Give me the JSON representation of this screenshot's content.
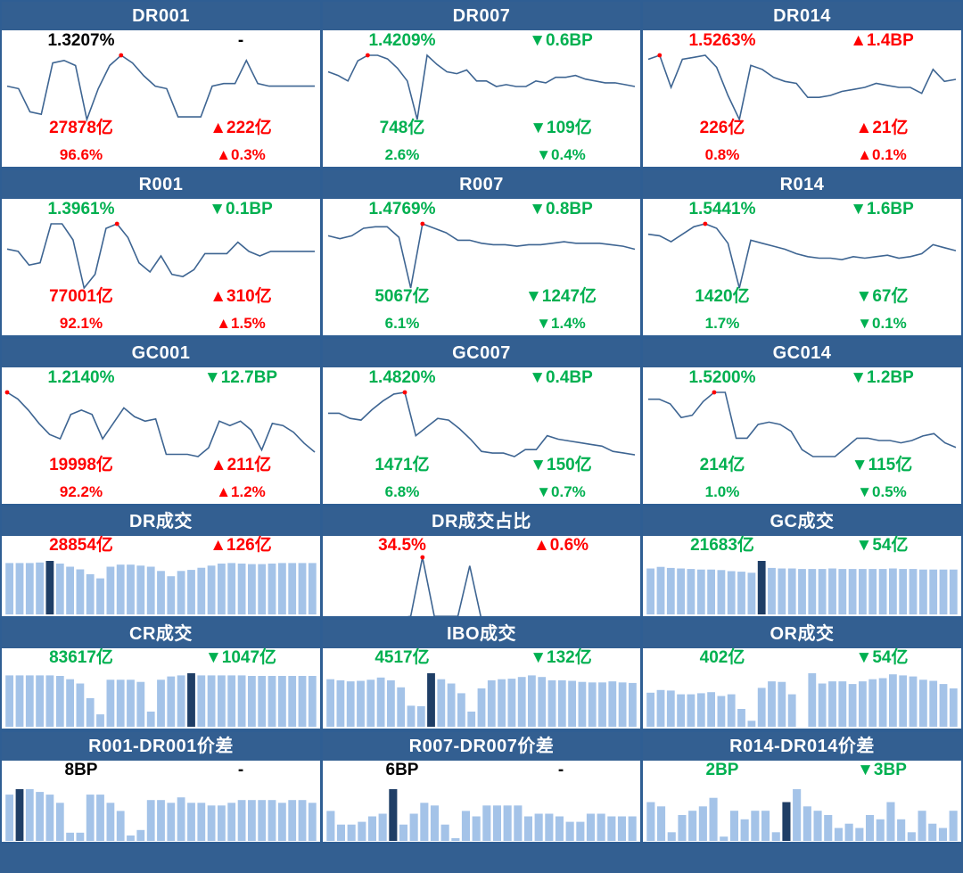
{
  "colors": {
    "header_bg": "#335f91",
    "up": "#ff0000",
    "down": "#00b050",
    "neutral": "#000000",
    "line": "#3e6592",
    "bar": "#a4c3e8",
    "bar_highlight": "#1f3e66"
  },
  "panels": [
    {
      "id": "dr001",
      "title": "DR001",
      "type": "line",
      "rate": "1.3207%",
      "rate_color": "black",
      "rate_change": "-",
      "rate_change_color": "black",
      "volume": "27878亿",
      "volume_color": "red",
      "volume_change": "▲222亿",
      "volume_change_color": "red",
      "share": "96.6%",
      "share_color": "red",
      "share_change": "▲0.3%",
      "share_change_color": "red",
      "chart_data": {
        "type": "line",
        "values": [
          1.25,
          1.24,
          1.15,
          1.14,
          1.34,
          1.35,
          1.33,
          1.12,
          1.24,
          1.33,
          1.37,
          1.34,
          1.29,
          1.25,
          1.24,
          1.13,
          1.13,
          1.13,
          1.25,
          1.26,
          1.26,
          1.35,
          1.26,
          1.25,
          1.25,
          1.25,
          1.25,
          1.25
        ],
        "highlight_index": 10
      }
    },
    {
      "id": "dr007",
      "title": "DR007",
      "type": "line",
      "rate": "1.4209%",
      "rate_color": "green",
      "rate_change": "▼0.6BP",
      "rate_change_color": "green",
      "volume": "748亿",
      "volume_color": "green",
      "volume_change": "▼109亿",
      "volume_change_color": "green",
      "share": "2.6%",
      "share_color": "green",
      "share_change": "▼0.4%",
      "share_change_color": "green",
      "chart_data": {
        "type": "line",
        "values": [
          1.6,
          1.58,
          1.55,
          1.66,
          1.69,
          1.69,
          1.67,
          1.62,
          1.55,
          1.34,
          1.69,
          1.64,
          1.6,
          1.59,
          1.61,
          1.55,
          1.55,
          1.52,
          1.53,
          1.52,
          1.52,
          1.55,
          1.54,
          1.57,
          1.57,
          1.58,
          1.56,
          1.55,
          1.54,
          1.54,
          1.53,
          1.52
        ],
        "highlight_index": 4
      }
    },
    {
      "id": "dr014",
      "title": "DR014",
      "type": "line",
      "rate": "1.5263%",
      "rate_color": "red",
      "rate_change": "▲1.4BP",
      "rate_change_color": "red",
      "volume": "226亿",
      "volume_color": "red",
      "volume_change": "▲21亿",
      "volume_change_color": "red",
      "share": "0.8%",
      "share_color": "red",
      "share_change": "▲0.1%",
      "share_change_color": "red",
      "chart_data": {
        "type": "line",
        "values": [
          1.78,
          1.8,
          1.64,
          1.78,
          1.79,
          1.8,
          1.74,
          1.6,
          1.48,
          1.75,
          1.73,
          1.69,
          1.67,
          1.66,
          1.59,
          1.59,
          1.6,
          1.62,
          1.63,
          1.64,
          1.66,
          1.65,
          1.64,
          1.64,
          1.61,
          1.73,
          1.67,
          1.68
        ],
        "highlight_index": 1
      }
    },
    {
      "id": "r001",
      "title": "R001",
      "type": "line",
      "rate": "1.3961%",
      "rate_color": "green",
      "rate_change": "▼0.1BP",
      "rate_change_color": "green",
      "volume": "77001亿",
      "volume_color": "red",
      "volume_change": "▲310亿",
      "volume_change_color": "red",
      "share": "92.1%",
      "share_color": "red",
      "share_change": "▲1.5%",
      "share_change_color": "red",
      "chart_data": {
        "type": "line",
        "values": [
          1.3,
          1.29,
          1.23,
          1.24,
          1.41,
          1.41,
          1.34,
          1.13,
          1.19,
          1.39,
          1.41,
          1.35,
          1.24,
          1.2,
          1.27,
          1.19,
          1.18,
          1.21,
          1.28,
          1.28,
          1.28,
          1.33,
          1.29,
          1.27,
          1.29,
          1.29,
          1.29,
          1.29,
          1.29
        ],
        "highlight_index": 10
      }
    },
    {
      "id": "r007",
      "title": "R007",
      "type": "line",
      "rate": "1.4769%",
      "rate_color": "green",
      "rate_change": "▼0.8BP",
      "rate_change_color": "green",
      "volume": "5067亿",
      "volume_color": "green",
      "volume_change": "▼1247亿",
      "volume_change_color": "green",
      "share": "6.1%",
      "share_color": "green",
      "share_change": "▼1.4%",
      "share_change_color": "green",
      "chart_data": {
        "type": "line",
        "values": [
          1.66,
          1.64,
          1.66,
          1.71,
          1.72,
          1.72,
          1.65,
          1.31,
          1.74,
          1.71,
          1.68,
          1.63,
          1.63,
          1.61,
          1.6,
          1.6,
          1.59,
          1.6,
          1.6,
          1.61,
          1.62,
          1.61,
          1.61,
          1.61,
          1.6,
          1.59,
          1.57
        ],
        "highlight_index": 8
      }
    },
    {
      "id": "r014",
      "title": "R014",
      "type": "line",
      "rate": "1.5441%",
      "rate_color": "green",
      "rate_change": "▼1.6BP",
      "rate_change_color": "green",
      "volume": "1420亿",
      "volume_color": "green",
      "volume_change": "▼67亿",
      "volume_change_color": "green",
      "share": "1.7%",
      "share_color": "green",
      "share_change": "▼0.1%",
      "share_change_color": "green",
      "chart_data": {
        "type": "line",
        "values": [
          1.76,
          1.75,
          1.71,
          1.76,
          1.81,
          1.83,
          1.8,
          1.7,
          1.4,
          1.72,
          1.7,
          1.68,
          1.66,
          1.63,
          1.61,
          1.6,
          1.6,
          1.59,
          1.61,
          1.6,
          1.61,
          1.62,
          1.6,
          1.61,
          1.63,
          1.69,
          1.67,
          1.65
        ],
        "highlight_index": 5
      }
    },
    {
      "id": "gc001",
      "title": "GC001",
      "type": "line",
      "rate": "1.2140%",
      "rate_color": "green",
      "rate_change": "▼12.7BP",
      "rate_change_color": "green",
      "volume": "19998亿",
      "volume_color": "red",
      "volume_change": "▲211亿",
      "volume_change_color": "red",
      "share": "92.2%",
      "share_color": "red",
      "share_change": "▲1.2%",
      "share_change_color": "red",
      "chart_data": {
        "type": "line",
        "values": [
          1.58,
          1.55,
          1.5,
          1.44,
          1.39,
          1.37,
          1.48,
          1.5,
          1.48,
          1.37,
          1.44,
          1.51,
          1.47,
          1.45,
          1.46,
          1.3,
          1.3,
          1.3,
          1.29,
          1.33,
          1.45,
          1.43,
          1.45,
          1.41,
          1.32,
          1.44,
          1.43,
          1.4,
          1.35,
          1.31
        ],
        "highlight_index": 0
      }
    },
    {
      "id": "gc007",
      "title": "GC007",
      "type": "line",
      "rate": "1.4820%",
      "rate_color": "green",
      "rate_change": "▼0.4BP",
      "rate_change_color": "green",
      "volume": "1471亿",
      "volume_color": "green",
      "volume_change": "▼150亿",
      "volume_change_color": "green",
      "share": "6.8%",
      "share_color": "green",
      "share_change": "▼0.7%",
      "share_change_color": "green",
      "chart_data": {
        "type": "line",
        "values": [
          1.73,
          1.73,
          1.7,
          1.69,
          1.75,
          1.8,
          1.84,
          1.85,
          1.6,
          1.65,
          1.7,
          1.69,
          1.64,
          1.58,
          1.51,
          1.5,
          1.5,
          1.48,
          1.52,
          1.52,
          1.6,
          1.58,
          1.57,
          1.56,
          1.55,
          1.54,
          1.51,
          1.5,
          1.49
        ],
        "highlight_index": 7
      }
    },
    {
      "id": "gc014",
      "title": "GC014",
      "type": "line",
      "rate": "1.5200%",
      "rate_color": "green",
      "rate_change": "▼1.2BP",
      "rate_change_color": "green",
      "volume": "214亿",
      "volume_color": "green",
      "volume_change": "▼115亿",
      "volume_change_color": "green",
      "share": "1.0%",
      "share_color": "green",
      "share_change": "▼0.5%",
      "share_change_color": "green",
      "chart_data": {
        "type": "line",
        "values": [
          1.76,
          1.76,
          1.74,
          1.68,
          1.69,
          1.75,
          1.79,
          1.79,
          1.59,
          1.59,
          1.65,
          1.66,
          1.65,
          1.62,
          1.54,
          1.51,
          1.51,
          1.51,
          1.55,
          1.59,
          1.59,
          1.58,
          1.58,
          1.57,
          1.58,
          1.6,
          1.61,
          1.57,
          1.55
        ],
        "highlight_index": 6
      }
    },
    {
      "id": "dr_vol",
      "title": "DR成交",
      "type": "bar",
      "rate": "28854亿",
      "rate_color": "red",
      "rate_change": "▲126亿",
      "rate_change_color": "red",
      "chart_data": {
        "type": "bar",
        "values": [
          97,
          97,
          97,
          98,
          101,
          96,
          90,
          85,
          76,
          68,
          90,
          94,
          94,
          92,
          90,
          82,
          72,
          82,
          84,
          88,
          92,
          96,
          97,
          96,
          95,
          95,
          96,
          97,
          97,
          97,
          97
        ],
        "highlight_index": 4
      }
    },
    {
      "id": "dr_share",
      "title": "DR成交占比",
      "type": "line",
      "rate": "34.5%",
      "rate_color": "red",
      "rate_change": "▲0.6%",
      "rate_change_color": "red",
      "chart_data": {
        "type": "line",
        "values": [
          2,
          2,
          1,
          1.5,
          1.5,
          1.5,
          2,
          3,
          38,
          3,
          3,
          3,
          33,
          1,
          1,
          1.5,
          2,
          2,
          1.5,
          1.5,
          1.5,
          2,
          2,
          2,
          2,
          2,
          2
        ],
        "highlight_index": 8
      }
    },
    {
      "id": "gc_vol",
      "title": "GC成交",
      "type": "bar",
      "rate": "21683亿",
      "rate_color": "green",
      "rate_change": "▼54亿",
      "rate_change_color": "green",
      "chart_data": {
        "type": "bar",
        "values": [
          85,
          88,
          86,
          85,
          84,
          83,
          83,
          82,
          80,
          79,
          77,
          99,
          86,
          85,
          85,
          84,
          84,
          84,
          85,
          84,
          84,
          84,
          84,
          84,
          85,
          84,
          84,
          83,
          83,
          83,
          83
        ],
        "highlight_index": 11
      }
    },
    {
      "id": "cr_vol",
      "title": "CR成交",
      "type": "bar",
      "rate": "83617亿",
      "rate_color": "green",
      "rate_change": "▼1047亿",
      "rate_change_color": "green",
      "chart_data": {
        "type": "bar",
        "values": [
          95,
          95,
          95,
          95,
          95,
          94,
          88,
          80,
          53,
          23,
          87,
          87,
          87,
          83,
          28,
          87,
          93,
          95,
          99,
          95,
          95,
          95,
          95,
          95,
          94,
          94,
          94,
          94,
          94,
          94,
          94
        ],
        "highlight_index": 18
      }
    },
    {
      "id": "ibo_vol",
      "title": "IBO成交",
      "type": "bar",
      "rate": "4517亿",
      "rate_color": "green",
      "rate_change": "▼132亿",
      "rate_change_color": "green",
      "chart_data": {
        "type": "bar",
        "values": [
          88,
          86,
          84,
          85,
          87,
          91,
          86,
          73,
          39,
          38,
          99,
          88,
          80,
          62,
          28,
          71,
          86,
          88,
          89,
          92,
          95,
          92,
          86,
          86,
          85,
          83,
          82,
          82,
          84,
          82,
          81
        ],
        "highlight_index": 10
      }
    },
    {
      "id": "or_vol",
      "title": "OR成交",
      "type": "bar",
      "rate": "402亿",
      "rate_color": "green",
      "rate_change": "▼54亿",
      "rate_change_color": "green",
      "chart_data": {
        "type": "bar",
        "values": [
          63,
          68,
          67,
          60,
          60,
          62,
          64,
          57,
          60,
          33,
          11,
          72,
          84,
          83,
          60,
          0,
          99,
          80,
          84,
          84,
          79,
          84,
          88,
          90,
          97,
          95,
          93,
          87,
          85,
          79,
          71
        ],
        "highlight_index": 15
      }
    },
    {
      "id": "r001_dr001",
      "title": "R001-DR001价差",
      "type": "bar",
      "rate": "8BP",
      "rate_color": "black",
      "rate_change": "-",
      "rate_change_color": "black",
      "chart_data": {
        "type": "bar",
        "values": [
          8.5,
          9.5,
          9.5,
          9.0,
          8.5,
          7.0,
          1.5,
          1.5,
          8.5,
          8.5,
          7.0,
          5.5,
          1.0,
          2.0,
          7.5,
          7.5,
          7.0,
          8.0,
          7.0,
          7.0,
          6.5,
          6.5,
          7.0,
          7.5,
          7.5,
          7.5,
          7.5,
          7.0,
          7.5,
          7.5,
          7.0
        ],
        "highlight_index": 1
      }
    },
    {
      "id": "r007_dr007",
      "title": "R007-DR007价差",
      "type": "bar",
      "rate": "6BP",
      "rate_color": "black",
      "rate_change": "-",
      "rate_change_color": "black",
      "chart_data": {
        "type": "bar",
        "values": [
          5.5,
          3.0,
          3.0,
          3.5,
          4.5,
          5.0,
          9.5,
          3.0,
          5.0,
          7.0,
          6.5,
          3.0,
          0.5,
          5.5,
          4.5,
          6.5,
          6.5,
          6.5,
          6.5,
          4.5,
          5.0,
          5.0,
          4.5,
          3.5,
          3.5,
          5.0,
          5.0,
          4.5,
          4.5,
          4.5
        ],
        "highlight_index": 6
      }
    },
    {
      "id": "r014_dr014",
      "title": "R014-DR014价差",
      "type": "bar",
      "rate": "2BP",
      "rate_color": "green",
      "rate_change": "▼3BP",
      "rate_change_color": "green",
      "chart_data": {
        "type": "bar",
        "values": [
          4.5,
          4.0,
          1.0,
          3.0,
          3.5,
          4.0,
          5.0,
          0.5,
          3.5,
          2.5,
          3.5,
          3.5,
          1.0,
          4.5,
          6.0,
          4.0,
          3.5,
          3.0,
          1.5,
          2.0,
          1.5,
          3.0,
          2.5,
          4.5,
          2.5,
          1.0,
          3.5,
          2.0,
          1.5,
          3.5
        ],
        "highlight_index": 13
      }
    }
  ]
}
